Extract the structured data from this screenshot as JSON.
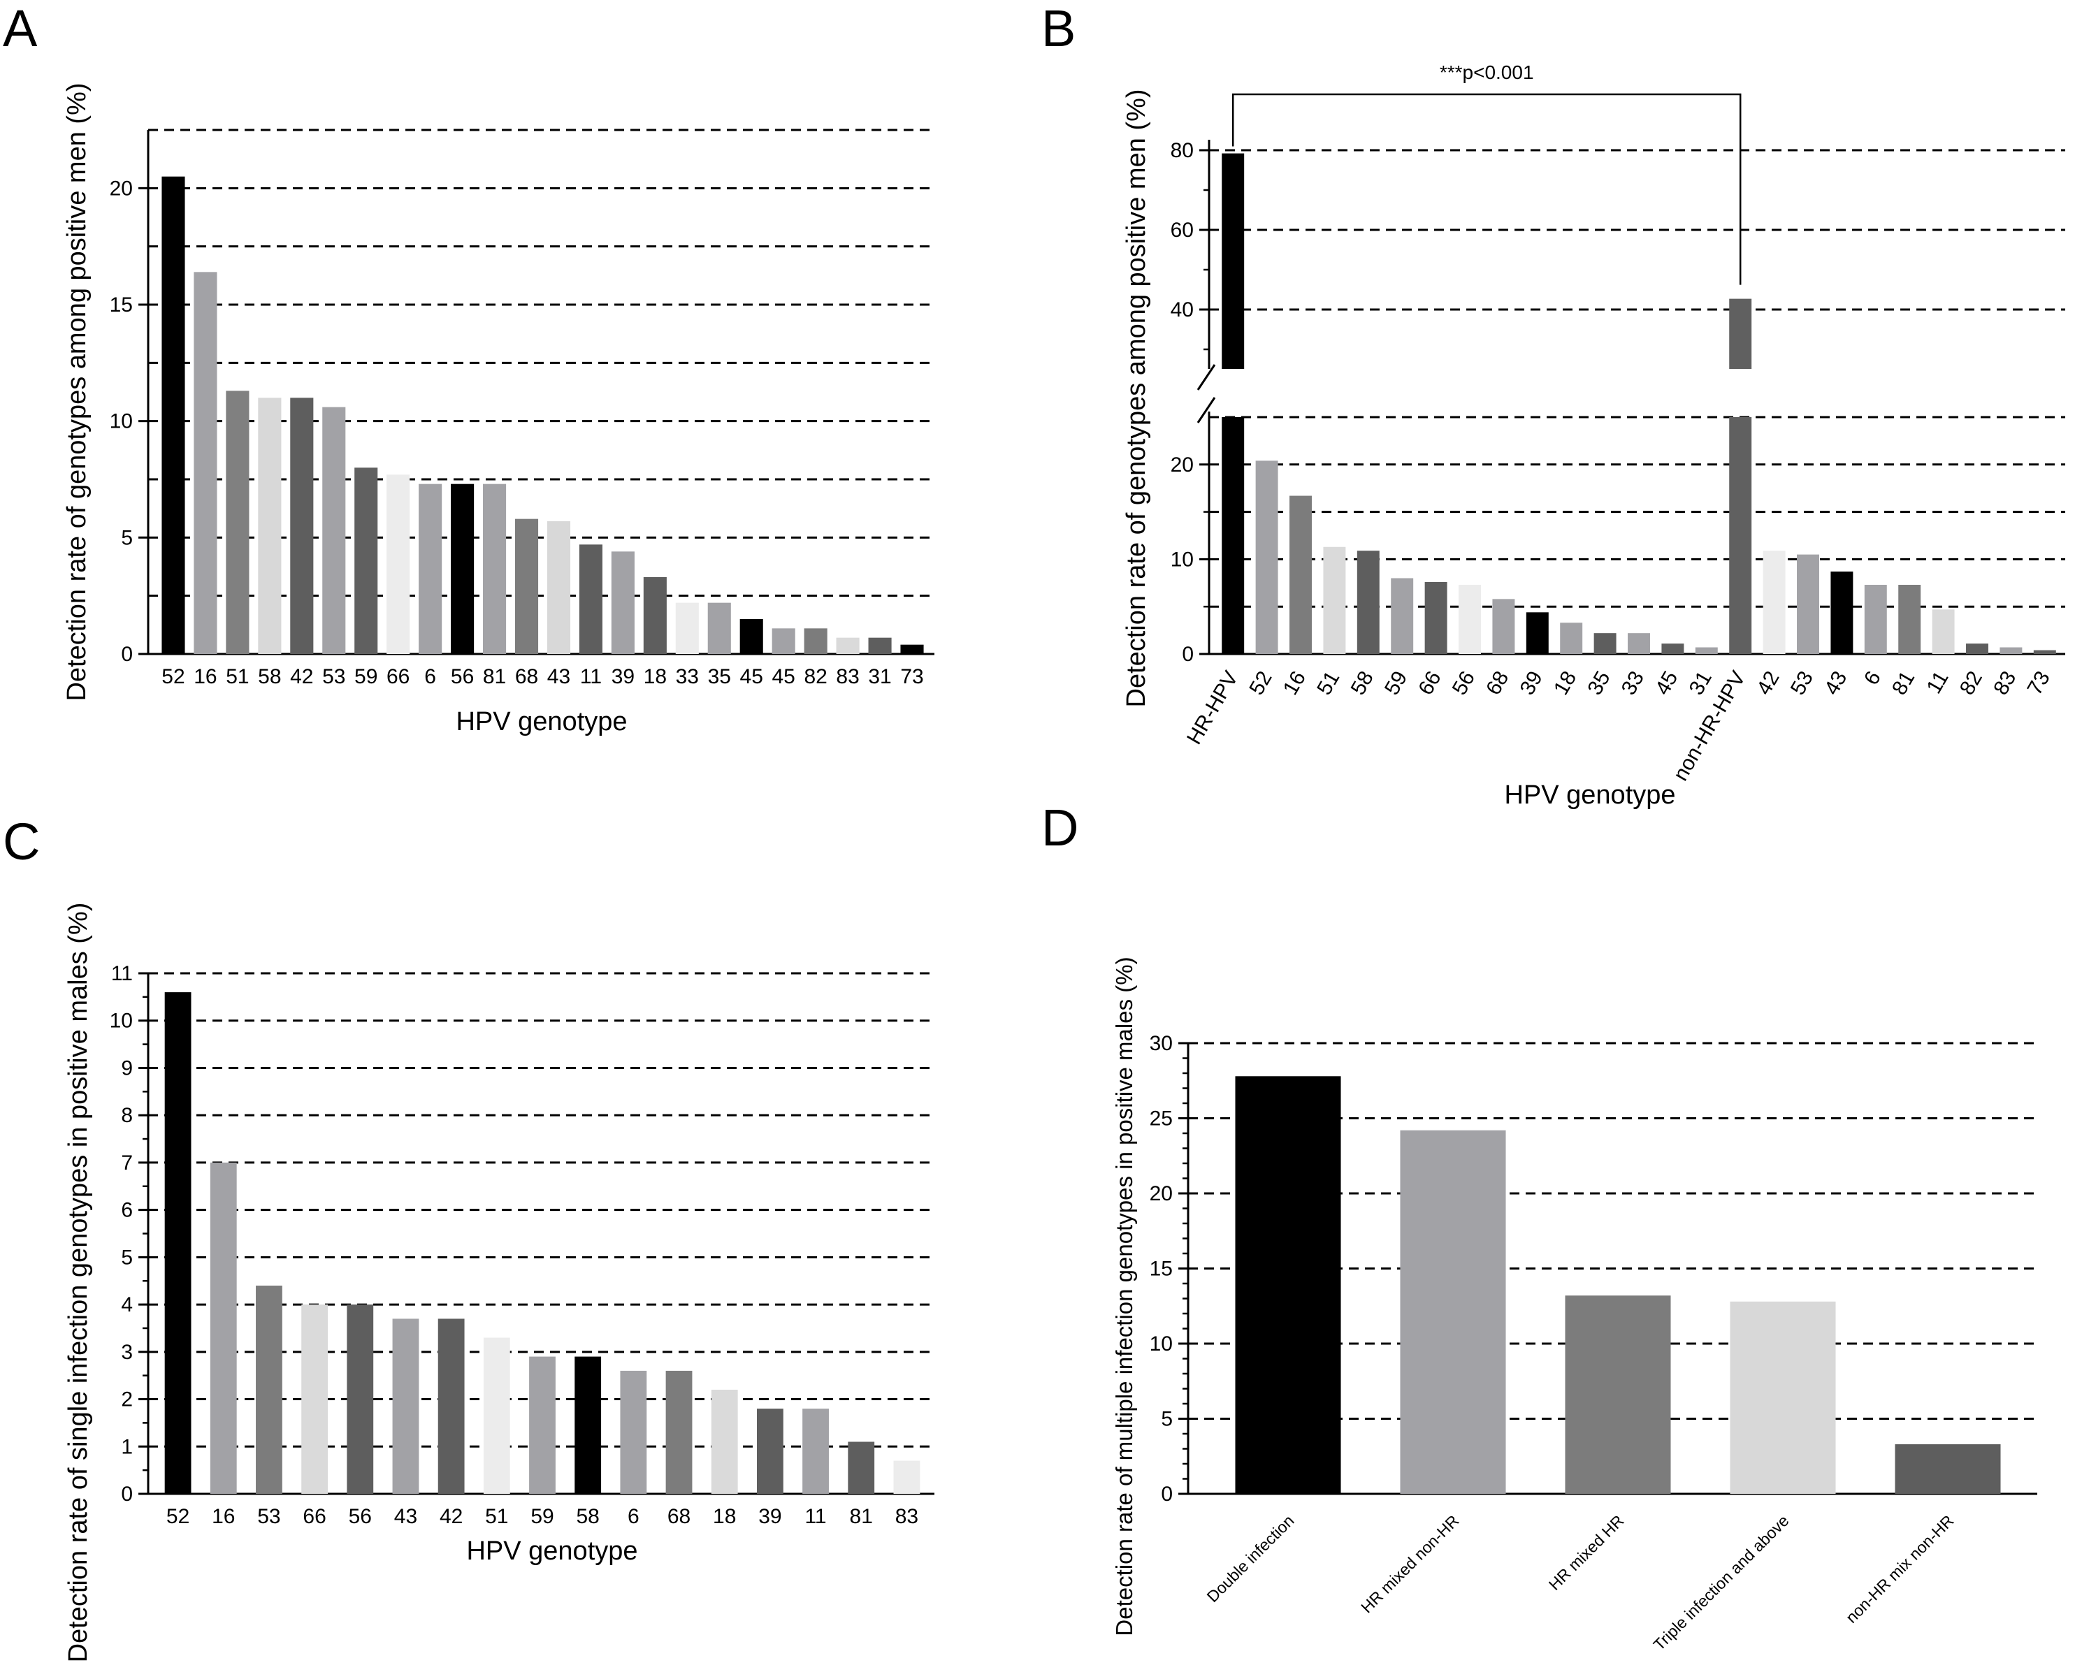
{
  "chart_data": [
    {
      "panel": "A",
      "type": "bar",
      "xlabel": "HPV genotype",
      "ylabel": "Detection rate of genotypes among positive men (%)",
      "ylim": [
        0,
        22.5
      ],
      "yticks": [
        0,
        5,
        10,
        15,
        20
      ],
      "gridlines": [
        2.5,
        5,
        7.5,
        10,
        12.5,
        15,
        17.5,
        20,
        22.5
      ],
      "categories": [
        "52",
        "16",
        "51",
        "58",
        "42",
        "53",
        "59",
        "66",
        "6",
        "56",
        "81",
        "68",
        "43",
        "11",
        "39",
        "18",
        "33",
        "35",
        "45",
        "45",
        "82",
        "83",
        "31",
        "73"
      ],
      "values": [
        20.5,
        16.4,
        11.3,
        11.0,
        11.0,
        10.6,
        8.0,
        7.7,
        7.3,
        7.3,
        7.3,
        5.8,
        5.7,
        4.7,
        4.4,
        3.3,
        2.2,
        2.2,
        1.5,
        1.1,
        1.1,
        0.7,
        0.7,
        0.4
      ],
      "colors": [
        "#000000",
        "#a2a2a6",
        "#808080",
        "#d8d8d8",
        "#5e5e5e",
        "#a2a2a6",
        "#606060",
        "#ececec",
        "#a2a2a6",
        "#000000",
        "#a2a2a6",
        "#7c7c7c",
        "#d8d8d8",
        "#5e5e5e",
        "#a2a2a6",
        "#5e5e5e",
        "#ececec",
        "#a2a2a6",
        "#000000",
        "#a2a2a6",
        "#7c7c7c",
        "#dadada",
        "#5e5e5e",
        "#000000"
      ]
    },
    {
      "panel": "B",
      "type": "bar",
      "broken_axis": true,
      "xlabel": "HPV genotype",
      "ylabel": "Detection rate of genotypes among positive men (%)",
      "ylim_lower": [
        0,
        25
      ],
      "ylim_upper": [
        25,
        85
      ],
      "yticks_lower": [
        0,
        10,
        20
      ],
      "yticks_upper": [
        40,
        60,
        80
      ],
      "gridlines_lower": [
        5,
        10,
        15,
        20,
        25
      ],
      "gridlines_upper": [
        40,
        60,
        80
      ],
      "categories": [
        "HR-HPV",
        "52",
        "16",
        "51",
        "58",
        "59",
        "66",
        "56",
        "68",
        "39",
        "18",
        "35",
        "33",
        "45",
        "31",
        "non-HR-HPV",
        "42",
        "53",
        "43",
        "6",
        "81",
        "11",
        "82",
        "83",
        "73"
      ],
      "values": [
        79.2,
        20.4,
        16.7,
        11.3,
        10.9,
        8.0,
        7.6,
        7.3,
        5.8,
        4.4,
        3.3,
        2.2,
        2.2,
        1.1,
        0.7,
        42.7,
        10.9,
        10.5,
        8.7,
        7.3,
        7.3,
        4.7,
        1.1,
        0.7,
        0.4
      ],
      "colors": [
        "#000000",
        "#a2a2a6",
        "#7c7c7c",
        "#dadada",
        "#5e5e5e",
        "#a2a2a6",
        "#5e5e5e",
        "#ececec",
        "#a2a2a6",
        "#000000",
        "#a2a2a6",
        "#5e5e5e",
        "#a2a2a6",
        "#5e5e5e",
        "#a2a2a6",
        "#606060",
        "#ececec",
        "#a2a2a6",
        "#000000",
        "#a2a2a6",
        "#7c7c7c",
        "#dadada",
        "#5e5e5e",
        "#a2a2a6",
        "#5e5e5e"
      ],
      "annotation": "***p<0.001",
      "annotation_between": [
        "HR-HPV",
        "non-HR-HPV"
      ]
    },
    {
      "panel": "C",
      "type": "bar",
      "xlabel": "HPV genotype",
      "ylabel": "Detection rate of single infection genotypes in positive males (%)",
      "ylim": [
        0,
        11
      ],
      "yticks": [
        0,
        1,
        2,
        3,
        4,
        5,
        6,
        7,
        8,
        9,
        10,
        11
      ],
      "gridlines": [
        1,
        2,
        3,
        4,
        5,
        6,
        7,
        8,
        9,
        10,
        11
      ],
      "categories": [
        "52",
        "16",
        "53",
        "66",
        "56",
        "43",
        "42",
        "51",
        "59",
        "58",
        "6",
        "68",
        "18",
        "39",
        "11",
        "81",
        "83"
      ],
      "values": [
        10.6,
        7.0,
        4.4,
        4.0,
        4.0,
        3.7,
        3.7,
        3.3,
        2.9,
        2.9,
        2.6,
        2.6,
        2.2,
        1.8,
        1.8,
        1.1,
        0.7
      ],
      "colors": [
        "#000000",
        "#a2a2a6",
        "#7c7c7c",
        "#dadada",
        "#5e5e5e",
        "#a2a2a6",
        "#5e5e5e",
        "#ececec",
        "#a2a2a6",
        "#000000",
        "#a2a2a6",
        "#7c7c7c",
        "#dadada",
        "#5e5e5e",
        "#a2a2a6",
        "#5e5e5e",
        "#ececec"
      ]
    },
    {
      "panel": "D",
      "type": "bar",
      "xlabel": "",
      "ylabel": "Detection rate of multiple infection genotypes in positive males (%)",
      "ylim": [
        0,
        30
      ],
      "yticks": [
        0,
        5,
        10,
        15,
        20,
        25,
        30
      ],
      "gridlines": [
        5,
        10,
        15,
        20,
        25,
        30
      ],
      "categories": [
        "Double infection",
        "HR mixed non-HR",
        "HR mixed  HR",
        "Triple infection and above",
        "non-HR  mix non-HR"
      ],
      "values": [
        27.8,
        24.2,
        13.2,
        12.8,
        3.3
      ],
      "colors": [
        "#000000",
        "#a2a2a6",
        "#7c7c7c",
        "#d8d8d8",
        "#5e5e5e"
      ]
    }
  ],
  "panel_labels": [
    "A",
    "B",
    "C",
    "D"
  ]
}
